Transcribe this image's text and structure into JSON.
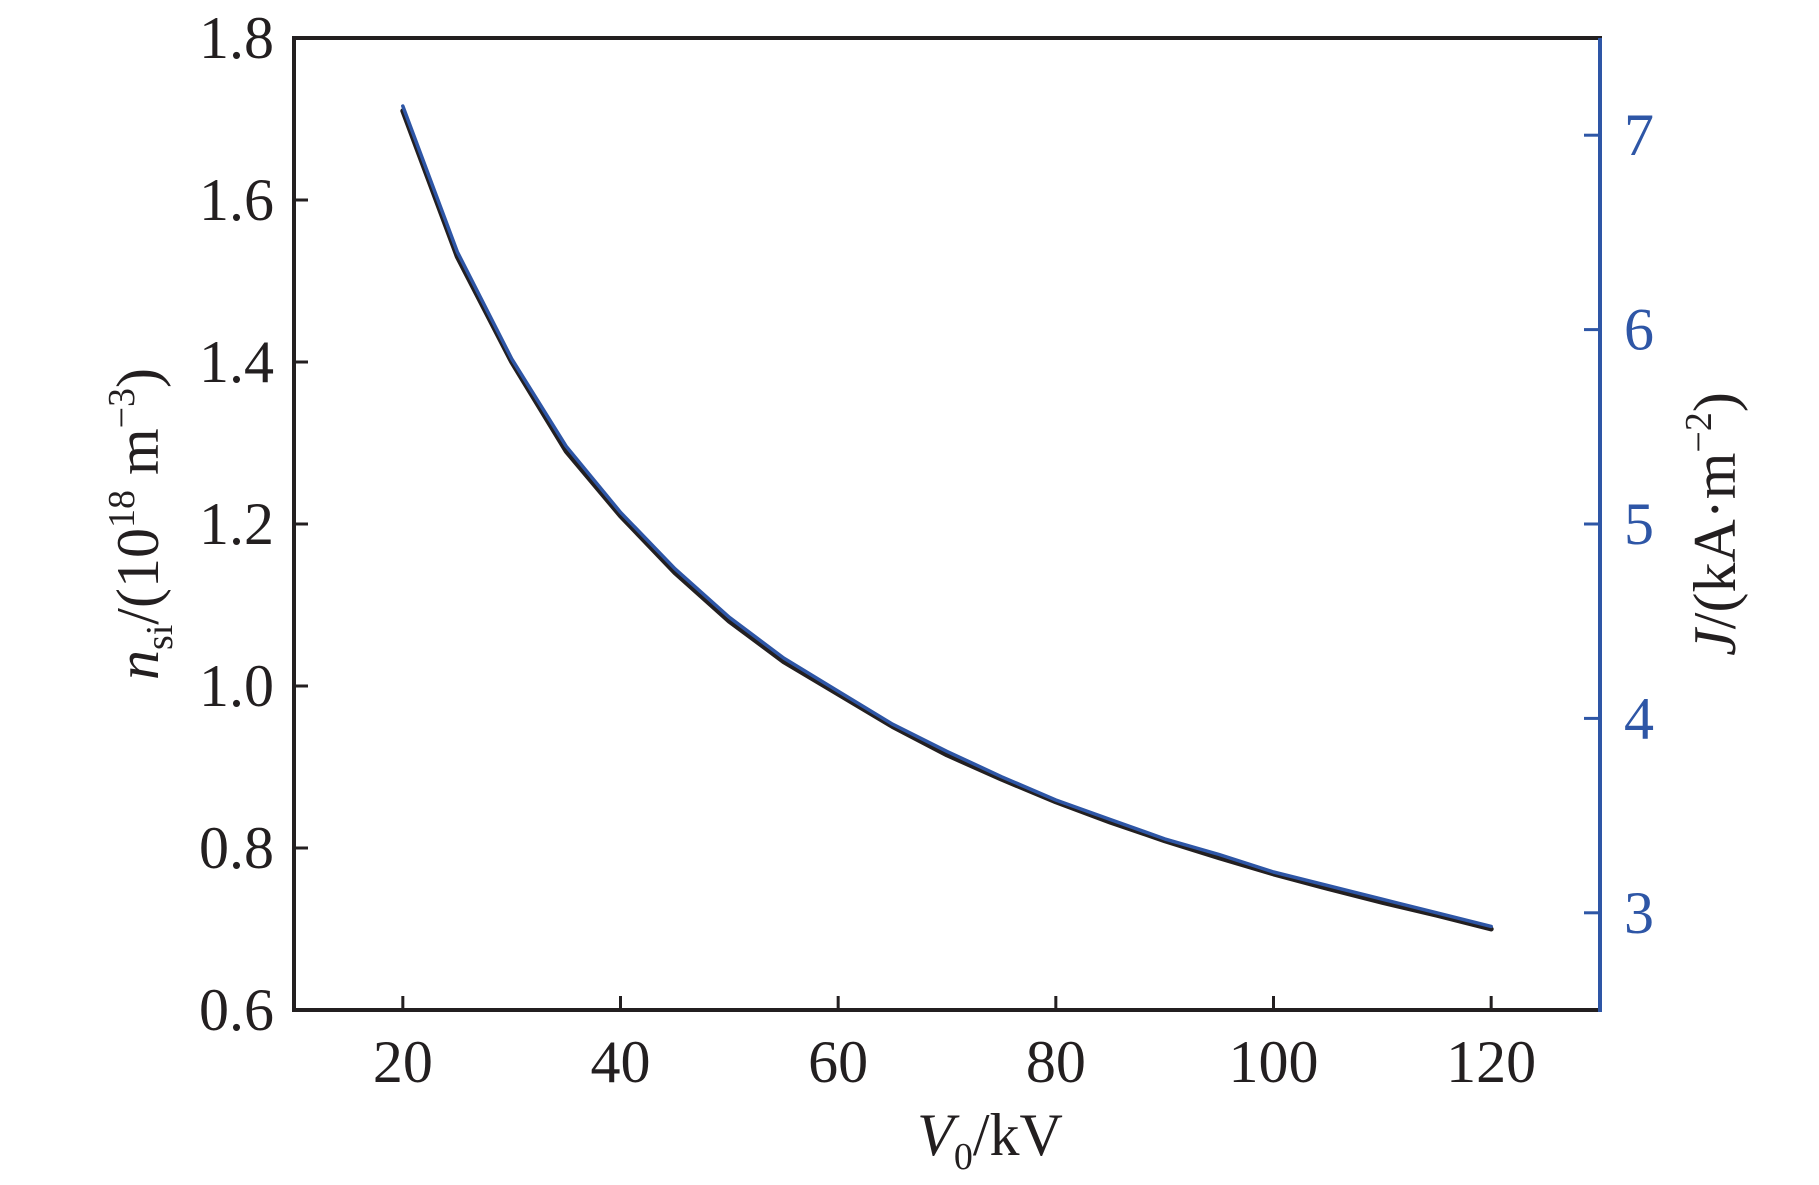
{
  "chart_data": {
    "type": "line",
    "xlabel": {
      "main": "V",
      "sub": "0",
      "rest": "/kV"
    },
    "ylabel_left": {
      "main": "n",
      "sub": "si",
      "mid": "/(10",
      "sup": "18",
      "rest_a": " m",
      "sup2": "−3",
      "rest_b": ")"
    },
    "ylabel_right": {
      "main": "J",
      "rest_a": "/(kA·m",
      "sup": "−2",
      "rest_b": ")"
    },
    "x_ticks": [
      "20",
      "40",
      "60",
      "80",
      "100",
      "120"
    ],
    "x_tick_values": [
      20,
      40,
      60,
      80,
      100,
      120
    ],
    "xlim": [
      10,
      130
    ],
    "y_left_ticks": [
      "0.6",
      "0.8",
      "1.0",
      "1.2",
      "1.4",
      "1.6",
      "1.8"
    ],
    "y_left_tick_values": [
      0.6,
      0.8,
      1.0,
      1.2,
      1.4,
      1.6,
      1.8
    ],
    "ylim_left": [
      0.6,
      1.8
    ],
    "y_right_ticks": [
      "3",
      "4",
      "5",
      "6",
      "7"
    ],
    "y_right_tick_values": [
      3,
      4,
      5,
      6,
      7
    ],
    "ylim_right": [
      2.5,
      7.5
    ],
    "series": [
      {
        "axis": "left",
        "color": "#231f20",
        "x": [
          20,
          25,
          30,
          35,
          40,
          45,
          50,
          55,
          60,
          65,
          70,
          75,
          80,
          85,
          90,
          95,
          100,
          105,
          110,
          115,
          120
        ],
        "y": [
          1.71,
          1.53,
          1.4,
          1.29,
          1.21,
          1.14,
          1.08,
          1.03,
          0.99,
          0.95,
          0.915,
          0.885,
          0.857,
          0.832,
          0.809,
          0.788,
          0.768,
          0.75,
          0.733,
          0.717,
          0.7
        ]
      },
      {
        "axis": "right",
        "color": "#2e56a6",
        "x": [
          20,
          25,
          30,
          35,
          40,
          45,
          50,
          55,
          60,
          65,
          70,
          75,
          80,
          85,
          90,
          95,
          100,
          105,
          110,
          115,
          120
        ],
        "y": [
          7.15,
          6.4,
          5.85,
          5.4,
          5.06,
          4.77,
          4.52,
          4.31,
          4.14,
          3.97,
          3.83,
          3.7,
          3.58,
          3.48,
          3.38,
          3.3,
          3.21,
          3.14,
          3.07,
          3.0,
          2.93
        ]
      }
    ],
    "colors": {
      "axis_left": "#231f20",
      "axis_right": "#2e56a6"
    }
  }
}
